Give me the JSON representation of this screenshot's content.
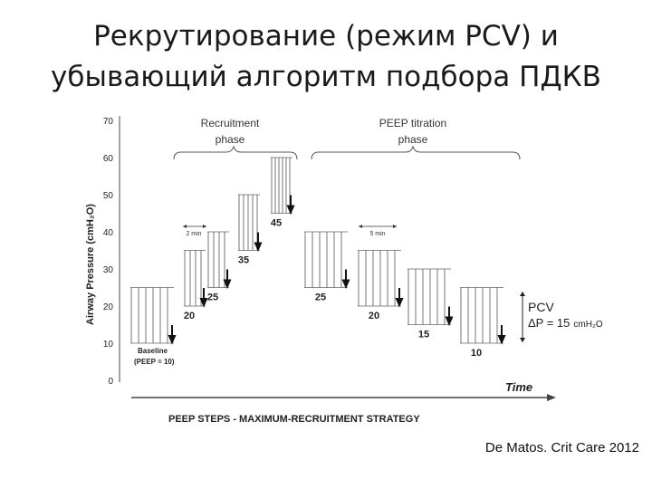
{
  "title_line1": "Рекрутирование (режим PCV) и",
  "title_line2": "убывающий алгоритм подбора ПДКВ",
  "citation": "De Matos. Crit Care 2012",
  "figure": {
    "y_axis_label": "Airway  Pressure (cmH₂O)",
    "y_ticks": [
      0,
      10,
      20,
      30,
      40,
      50,
      60,
      70
    ],
    "time_label": "Time",
    "phase_recruitment": [
      "Recruitment",
      "phase"
    ],
    "phase_titration": [
      "PEEP  titration",
      "phase"
    ],
    "interval_recruitment": "2 min",
    "interval_titration": "5 min",
    "baseline_label": [
      "Baseline",
      "(PEEP = 10)"
    ],
    "pcv_label": "PCV",
    "delta_p_label": "ΔP = 15",
    "delta_p_unit": "cmH₂O",
    "footer": "PEEP STEPS   -   MAXIMUM-RECRUITMENT  STRATEGY",
    "steps": [
      {
        "peep": 10,
        "pip": 25,
        "label": "",
        "phase": "baseline"
      },
      {
        "peep": 20,
        "pip": 35,
        "label": "20",
        "phase": "recruitment"
      },
      {
        "peep": 25,
        "pip": 40,
        "label": "25",
        "phase": "recruitment"
      },
      {
        "peep": 35,
        "pip": 50,
        "label": "35",
        "phase": "recruitment"
      },
      {
        "peep": 45,
        "pip": 60,
        "label": "45",
        "phase": "recruitment"
      },
      {
        "peep": 25,
        "pip": 40,
        "label": "25",
        "phase": "titration"
      },
      {
        "peep": 20,
        "pip": 35,
        "label": "20",
        "phase": "titration"
      },
      {
        "peep": 15,
        "pip": 30,
        "label": "15",
        "phase": "titration"
      },
      {
        "peep": 10,
        "pip": 25,
        "label": "10",
        "phase": "titration"
      }
    ]
  }
}
